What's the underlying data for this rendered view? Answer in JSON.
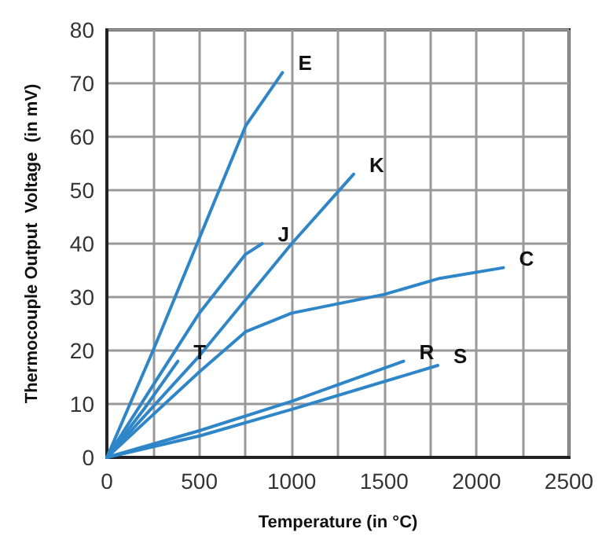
{
  "chart_data": {
    "type": "line",
    "xlabel": "Temperature (in °C)",
    "ylabel": "Thermocouple Output  Voltage  (in mV)",
    "xlim": [
      0,
      2500
    ],
    "xticks": [
      0,
      {
        "value": 250,
        "label": null
      },
      500,
      {
        "value": 750,
        "label": null
      },
      1000,
      {
        "value": 1250,
        "label": null
      },
      1500,
      {
        "value": 1750,
        "label": null
      },
      2000,
      {
        "value": 2250,
        "label": null
      },
      2500
    ],
    "ylim": [
      0,
      80
    ],
    "yticks": [
      0,
      10,
      20,
      30,
      40,
      50,
      60,
      70,
      80
    ],
    "grid": true,
    "legend": false,
    "marker": "none",
    "line_style": "solid",
    "series": [
      {
        "name": "E",
        "color": "#2e86c8",
        "x": [
          0,
          250,
          500,
          750,
          950
        ],
        "values": [
          0,
          20,
          41,
          62,
          72
        ]
      },
      {
        "name": "K",
        "color": "#2e86c8",
        "x": [
          0,
          250,
          500,
          1000,
          1335
        ],
        "values": [
          0,
          9.5,
          19,
          40,
          53
        ]
      },
      {
        "name": "J",
        "color": "#2e86c8",
        "x": [
          0,
          250,
          500,
          750,
          840
        ],
        "values": [
          0,
          13.5,
          27,
          38,
          40
        ]
      },
      {
        "name": "T",
        "color": "#2e86c8",
        "x": [
          0,
          200,
          384
        ],
        "values": [
          0,
          9,
          18
        ]
      },
      {
        "name": "C",
        "color": "#2e86c8",
        "x": [
          0,
          250,
          500,
          750,
          1000,
          1500,
          1800,
          2145
        ],
        "values": [
          0,
          8,
          16,
          23.5,
          27,
          30.5,
          33.5,
          35.5
        ]
      },
      {
        "name": "R",
        "color": "#2e86c8",
        "x": [
          0,
          500,
          1000,
          1605
        ],
        "values": [
          0,
          5,
          10.5,
          18
        ]
      },
      {
        "name": "S",
        "color": "#2e86c8",
        "x": [
          0,
          500,
          1000,
          1790
        ],
        "values": [
          0,
          4,
          9,
          17.2
        ]
      }
    ]
  }
}
